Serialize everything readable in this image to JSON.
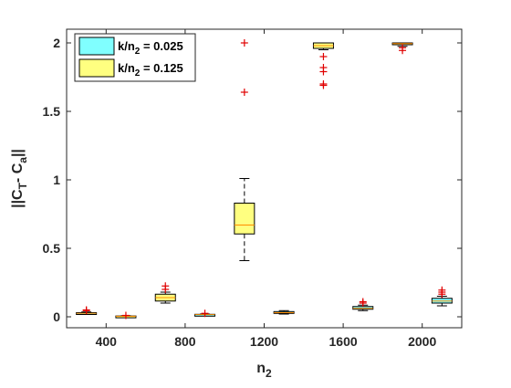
{
  "chart_data": {
    "type": "box",
    "xlabel": "n",
    "xlabel_sub": "2",
    "ylabel_parts": [
      "||C",
      "T",
      "- C",
      "a",
      "||"
    ],
    "xlim": [
      200,
      2200
    ],
    "ylim": [
      -0.08,
      2.1
    ],
    "xticks": [
      400,
      800,
      1200,
      1600,
      2000
    ],
    "yticks": [
      0,
      0.5,
      1,
      1.5,
      2
    ],
    "ytick_labels": [
      "0",
      "0.5",
      "1",
      "1.5",
      "2"
    ],
    "legend_position": "top-left",
    "legend_text": "k/n",
    "legend_sub": "2",
    "series": [
      {
        "label_value": " = 0.025",
        "color": "#80ffff",
        "boxes": [
          {
            "x": 300,
            "min": 0.02,
            "q1": 0.022,
            "median": 0.025,
            "q3": 0.03,
            "max": 0.035,
            "outliers": [
              0.045,
              0.05
            ]
          },
          {
            "x": 900,
            "min": 0.012,
            "q1": 0.014,
            "median": 0.016,
            "q3": 0.018,
            "max": 0.02,
            "outliers": [
              0.025
            ]
          },
          {
            "x": 1300,
            "min": 0.02,
            "q1": 0.025,
            "median": 0.03,
            "q3": 0.038,
            "max": 0.045,
            "outliers": []
          },
          {
            "x": 1700,
            "min": 0.045,
            "q1": 0.055,
            "median": 0.062,
            "q3": 0.075,
            "max": 0.085,
            "outliers": [
              0.1,
              0.11
            ]
          },
          {
            "x": 2100,
            "min": 0.08,
            "q1": 0.1,
            "median": 0.115,
            "q3": 0.135,
            "max": 0.15,
            "outliers": [
              0.165,
              0.18,
              0.195
            ]
          }
        ]
      },
      {
        "label_value": " = 0.125",
        "color": "#ffff80",
        "boxes": [
          {
            "x": 500,
            "min": 0.0,
            "q1": 0.002,
            "median": 0.004,
            "q3": 0.006,
            "max": 0.008,
            "outliers": [
              0.01
            ]
          },
          {
            "x": 700,
            "min": 0.1,
            "q1": 0.115,
            "median": 0.14,
            "q3": 0.165,
            "max": 0.18,
            "outliers": [
              0.2,
              0.225
            ]
          },
          {
            "x": 1100,
            "min": 0.41,
            "q1": 0.605,
            "median": 0.67,
            "q3": 0.83,
            "max": 1.01,
            "outliers": [
              1.64,
              2.0
            ]
          },
          {
            "x": 1500,
            "min": 1.95,
            "q1": 1.96,
            "median": 1.98,
            "q3": 2.0,
            "max": 2.0,
            "outliers": [
              1.9,
              1.82,
              1.79,
              1.7,
              1.69
            ]
          },
          {
            "x": 1900,
            "min": 1.975,
            "q1": 1.99,
            "median": 1.995,
            "q3": 2.0,
            "max": 2.0,
            "outliers": [
              1.965,
              1.945
            ]
          }
        ]
      }
    ]
  }
}
